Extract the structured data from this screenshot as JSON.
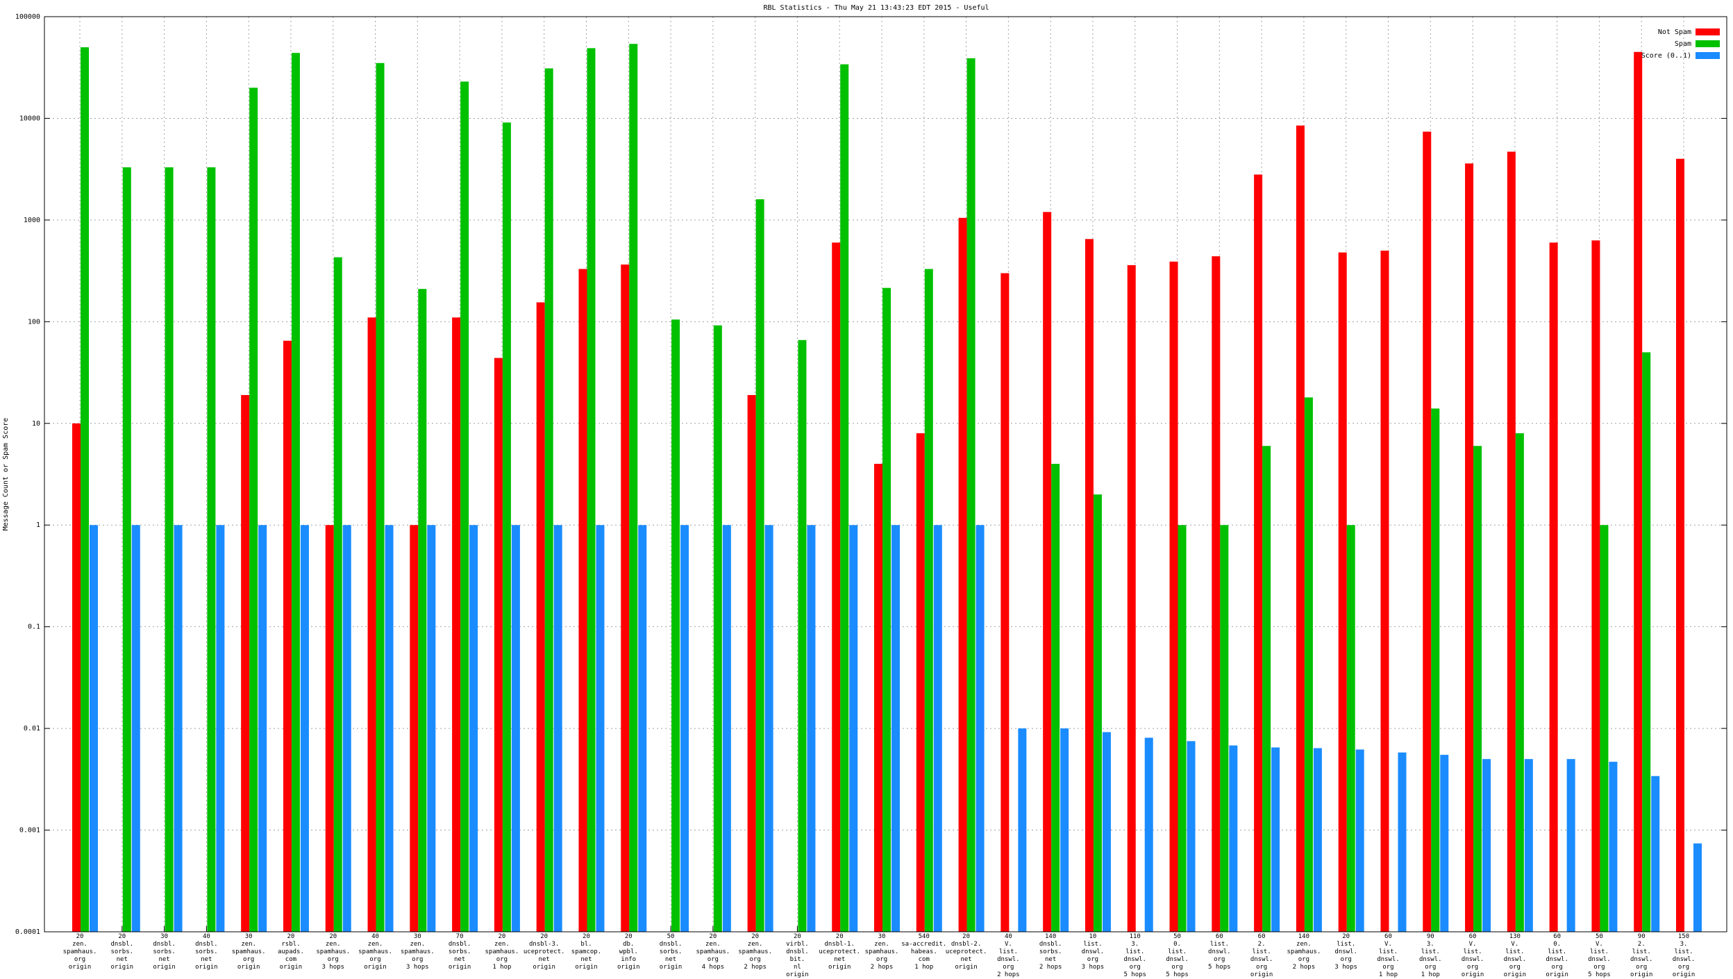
{
  "chart_data": {
    "type": "bar",
    "title": "RBL Statistics - Thu May 21 13:43:23 EDT 2015 - Useful",
    "y_label": "Message Count or Spam Score",
    "log_scale": true,
    "grid": true,
    "legend_position": "top-right",
    "ylim": [
      0.0001,
      100000
    ],
    "yticks": [
      0.0001,
      0.001,
      0.01,
      0.1,
      1,
      10,
      100,
      1000,
      10000,
      100000
    ],
    "categories": [
      "20\nzen.\nspamhaus.\norg\norigin",
      "20\ndnsbl.\nsorbs.\nnet\norigin",
      "30\ndnsbl.\nsorbs.\nnet\norigin",
      "40\ndnsbl.\nsorbs.\nnet\norigin",
      "30\nzen.\nspamhaus.\norg\norigin",
      "20\nrsbl.\naupads.\ncom\norigin",
      "20\nzen.\nspamhaus.\norg\n3 hops",
      "40\nzen.\nspamhaus.\norg\norigin",
      "30\nzen.\nspamhaus.\norg\n3 hops",
      "70\ndnsbl.\nsorbs.\nnet\norigin",
      "20\nzen.\nspamhaus.\norg\n1 hop",
      "20\ndnsbl-3.\nuceprotect.\nnet\norigin",
      "20\nbl.\nspamcop.\nnet\norigin",
      "20\ndb.\nwpbl.\ninfo\norigin",
      "50\ndnsbl.\nsorbs.\nnet\norigin",
      "20\nzen.\nspamhaus.\norg\n4 hops",
      "20\nzen.\nspamhaus.\norg\n2 hops",
      "20\nvirbl.\ndnsbl.\nbit.\nnl\norigin",
      "20\ndnsbl-1.\nuceprotect.\nnet\norigin",
      "30\nzen.\nspamhaus.\norg\n2 hops",
      "540\nsa-accredit.\nhabeas.\ncom\n1 hop",
      "20\ndnsbl-2.\nuceprotect.\nnet\norigin",
      "40\nV.\nlist.\ndnswl.\norg\n2 hops",
      "140\ndnsbl.\nsorbs.\nnet\n2 hops",
      "10\nlist.\ndnswl.\norg\n3 hops",
      "110\n3.\nlist.\ndnswl.\norg\n5 hops",
      "50\n0.\nlist.\ndnswl.\norg\n5 hops",
      "60\nlist.\ndnswl.\norg\n5 hops",
      "60\n2.\nlist.\ndnswl.\norg\norigin",
      "140\nzen.\nspamhaus.\norg\n2 hops",
      "20\nlist.\ndnswl.\norg\n3 hops",
      "60\nV.\nlist.\ndnswl.\norg\n1 hop",
      "90\n3.\nlist.\ndnswl.\norg\n1 hop",
      "60\nV.\nlist.\ndnswl.\norg\norigin",
      "130\nV.\nlist.\ndnswl.\norg\norigin",
      "60\n0.\nlist.\ndnswl.\norg\norigin",
      "50\nV.\nlist.\ndnswl.\norg\n5 hops",
      "90\n2.\nlist.\ndnswl.\norg\norigin",
      "150\n3.\nlist.\ndnswl.\norg\norigin"
    ],
    "series": [
      {
        "name": "Not Spam",
        "color": "#ff0000",
        "values": [
          10,
          null,
          null,
          null,
          19,
          65,
          1,
          110,
          1,
          110,
          44,
          155,
          330,
          365,
          null,
          null,
          19,
          null,
          600,
          4,
          8,
          1050,
          300,
          1200,
          650,
          360,
          390,
          440,
          2800,
          8500,
          480,
          500,
          7400,
          3600,
          4700,
          600,
          630,
          45000,
          4000
        ]
      },
      {
        "name": "Spam",
        "color": "#00c000",
        "values": [
          50000,
          3300,
          3300,
          3300,
          20000,
          44000,
          430,
          35000,
          210,
          23000,
          9100,
          31000,
          49000,
          54000,
          105,
          92,
          1600,
          66,
          34000,
          215,
          330,
          39000,
          null,
          4,
          2,
          null,
          1,
          1,
          6,
          18,
          1,
          null,
          14,
          6,
          8,
          null,
          1,
          50,
          null
        ]
      },
      {
        "name": "Score (0..1)",
        "color": "#1a8cff",
        "values": [
          1,
          1,
          1,
          1,
          1,
          1,
          1,
          1,
          1,
          1,
          1,
          1,
          1,
          1,
          1,
          1,
          1,
          1,
          1,
          1,
          1,
          1,
          0.01,
          0.01,
          0.0092,
          0.0081,
          0.0075,
          0.0068,
          0.0065,
          0.0064,
          0.0062,
          0.0058,
          0.0055,
          0.005,
          0.005,
          0.005,
          0.0047,
          0.0034,
          0.00074
        ]
      }
    ]
  }
}
